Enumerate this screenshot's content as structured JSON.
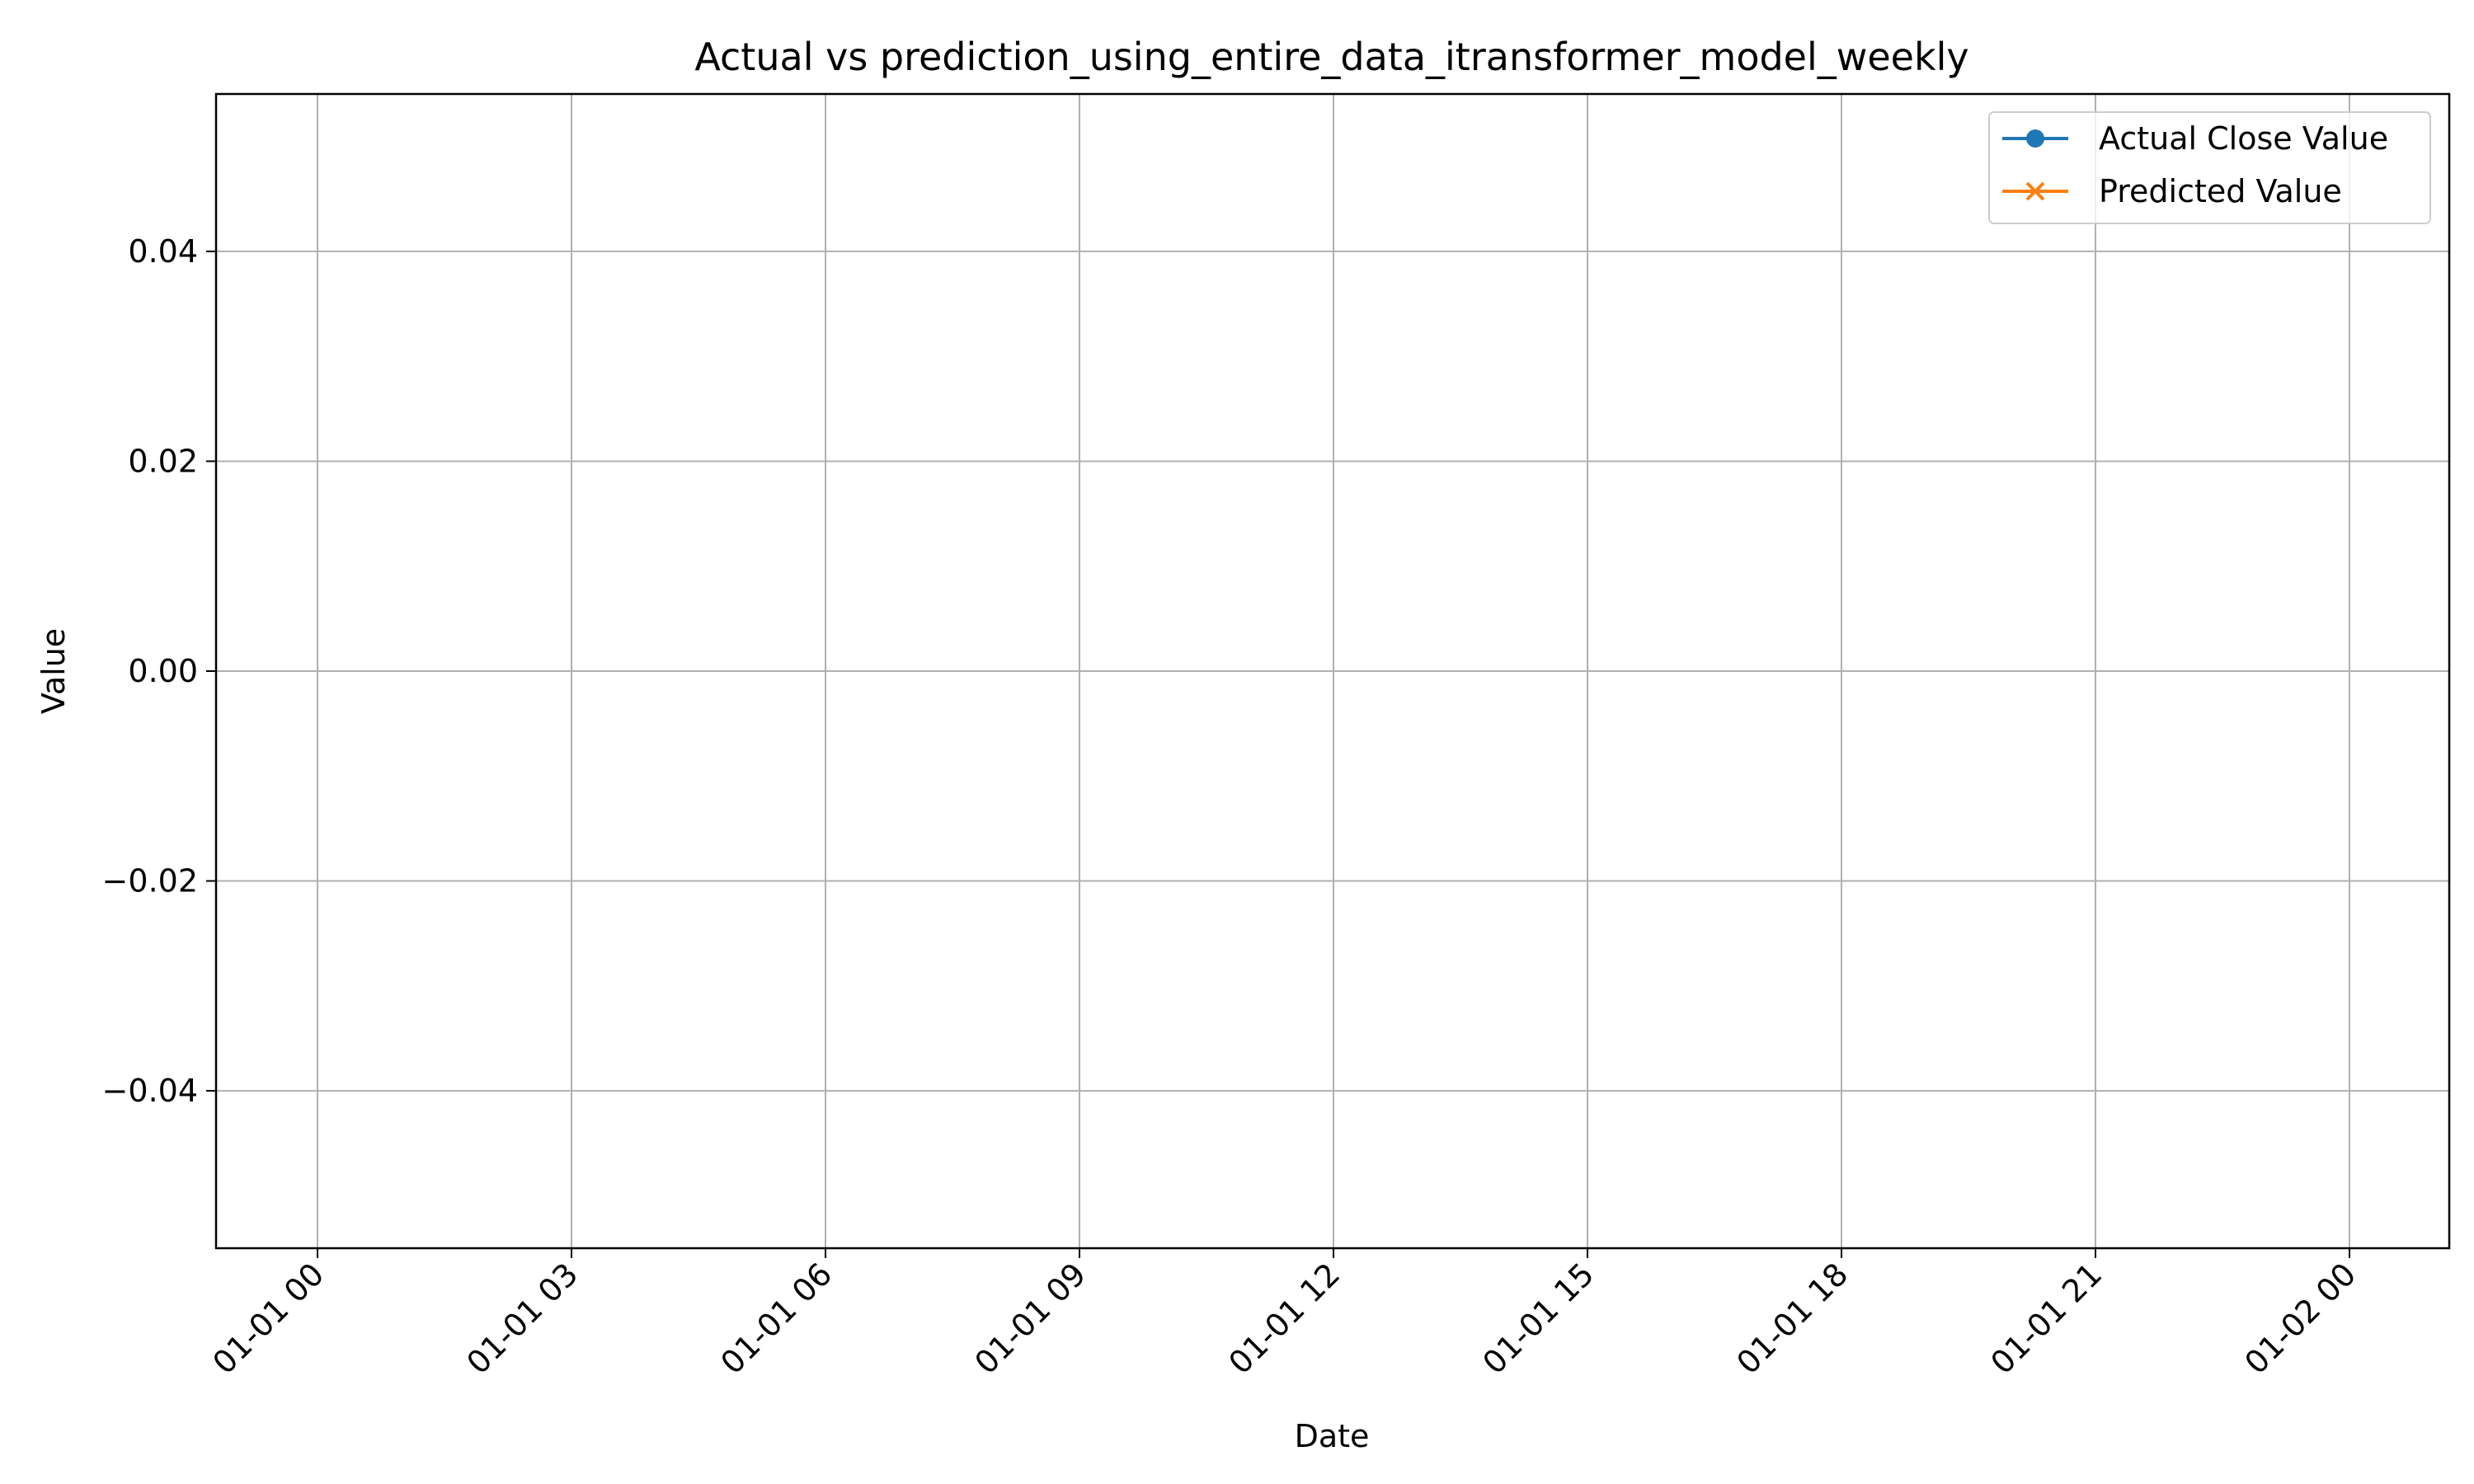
{
  "chart_data": {
    "type": "line",
    "title": "Actual vs prediction_using_entire_data_itransformer_model_weekly",
    "xlabel": "Date",
    "ylabel": "Value",
    "x_tick_labels": [
      "01-01 00",
      "01-01 03",
      "01-01 06",
      "01-01 09",
      "01-01 12",
      "01-01 15",
      "01-01 18",
      "01-01 21",
      "01-02 00"
    ],
    "y_tick_labels": [
      "0.04",
      "0.02",
      "0.00",
      "−0.02",
      "−0.04"
    ],
    "y_ticks": [
      0.04,
      0.02,
      0.0,
      -0.02,
      -0.04
    ],
    "ylim": [
      -0.055,
      0.055
    ],
    "grid": true,
    "legend_position": "top-right",
    "series": [
      {
        "name": "Actual Close Value",
        "color": "#1f77b4",
        "marker": "circle",
        "x": [],
        "values": []
      },
      {
        "name": "Predicted Value",
        "color": "#ff7f0e",
        "marker": "x",
        "x": [],
        "values": []
      }
    ]
  }
}
